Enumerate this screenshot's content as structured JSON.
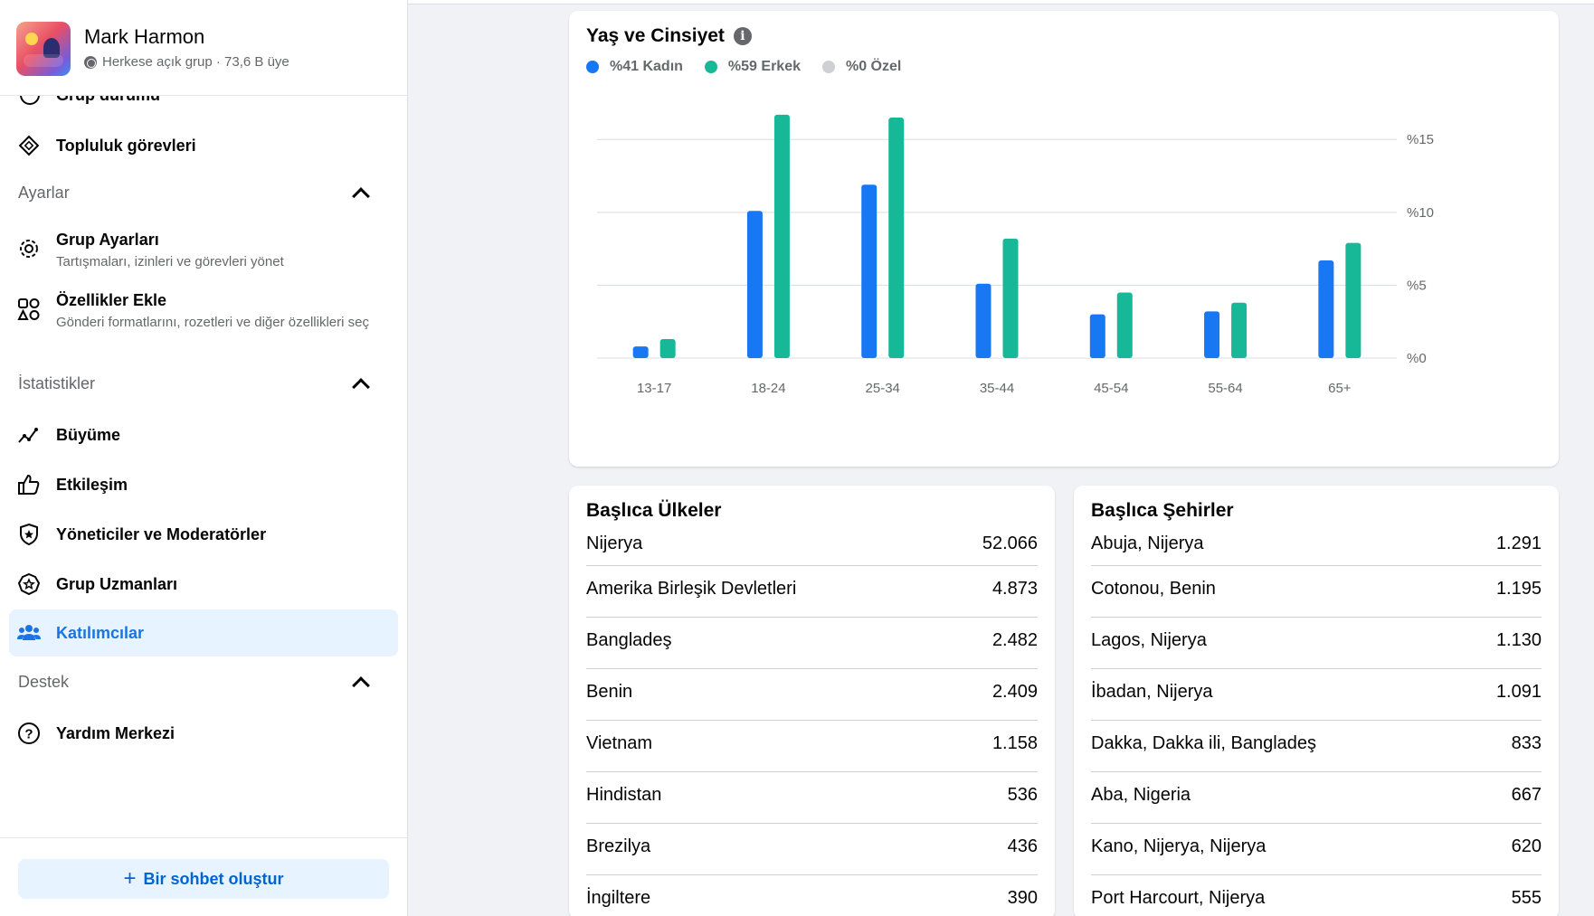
{
  "group": {
    "name": "Mark Harmon",
    "meta": "Herkese açık grup · 73,6 B üye"
  },
  "sidebar": {
    "cut_item": "Grup durumu",
    "community_tasks": "Topluluk görevleri",
    "settings_header": "Ayarlar",
    "group_settings": {
      "title": "Grup Ayarları",
      "subtitle": "Tartışmaları, izinleri ve görevleri yönet"
    },
    "add_features": {
      "title": "Özellikler Ekle",
      "subtitle": "Gönderi formatlarını, rozetleri ve diğer özellikleri seç"
    },
    "stats_header": "İstatistikler",
    "growth": "Büyüme",
    "engagement": "Etkileşim",
    "admins": "Yöneticiler ve Moderatörler",
    "experts": "Grup Uzmanları",
    "participants": "Katılımcılar",
    "support_header": "Destek",
    "help": "Yardım Merkezi",
    "create_chat": "Bir sohbet oluştur"
  },
  "age_gender": {
    "title": "Yaş ve Cinsiyet",
    "legend": [
      {
        "label": "%41 Kadın",
        "color": "#1877f2"
      },
      {
        "label": "%59 Erkek",
        "color": "#17b898"
      },
      {
        "label": "%0 Özel",
        "color": "#ced0d4"
      }
    ]
  },
  "chart_data": {
    "type": "bar",
    "categories": [
      "13-17",
      "18-24",
      "25-34",
      "35-44",
      "45-54",
      "55-64",
      "65+"
    ],
    "series": [
      {
        "name": "Kadın",
        "color": "#1877f2",
        "values": [
          0.8,
          10.1,
          11.9,
          5.1,
          3.0,
          3.2,
          6.7
        ]
      },
      {
        "name": "Erkek",
        "color": "#17b898",
        "values": [
          1.3,
          16.7,
          16.5,
          8.2,
          4.5,
          3.8,
          7.9
        ]
      }
    ],
    "yticks": [
      "%0",
      "%5",
      "%10",
      "%15"
    ],
    "ytick_values": [
      0,
      5,
      10,
      15
    ],
    "ylim": [
      0,
      17
    ],
    "grid": true
  },
  "countries": {
    "title": "Başlıca Ülkeler",
    "rows": [
      {
        "name": "Nijerya",
        "value": "52.066"
      },
      {
        "name": "Amerika Birleşik Devletleri",
        "value": "4.873"
      },
      {
        "name": "Bangladeş",
        "value": "2.482"
      },
      {
        "name": "Benin",
        "value": "2.409"
      },
      {
        "name": "Vietnam",
        "value": "1.158"
      },
      {
        "name": "Hindistan",
        "value": "536"
      },
      {
        "name": "Brezilya",
        "value": "436"
      },
      {
        "name": "İngiltere",
        "value": "390"
      }
    ]
  },
  "cities": {
    "title": "Başlıca Şehirler",
    "rows": [
      {
        "name": "Abuja, Nijerya",
        "value": "1.291"
      },
      {
        "name": "Cotonou, Benin",
        "value": "1.195"
      },
      {
        "name": "Lagos, Nijerya",
        "value": "1.130"
      },
      {
        "name": "İbadan, Nijerya",
        "value": "1.091"
      },
      {
        "name": "Dakka, Dakka ili, Bangladeş",
        "value": "833"
      },
      {
        "name": "Aba, Nigeria",
        "value": "667"
      },
      {
        "name": "Kano, Nijerya, Nijerya",
        "value": "620"
      },
      {
        "name": "Port Harcourt, Nijerya",
        "value": "555"
      }
    ]
  }
}
